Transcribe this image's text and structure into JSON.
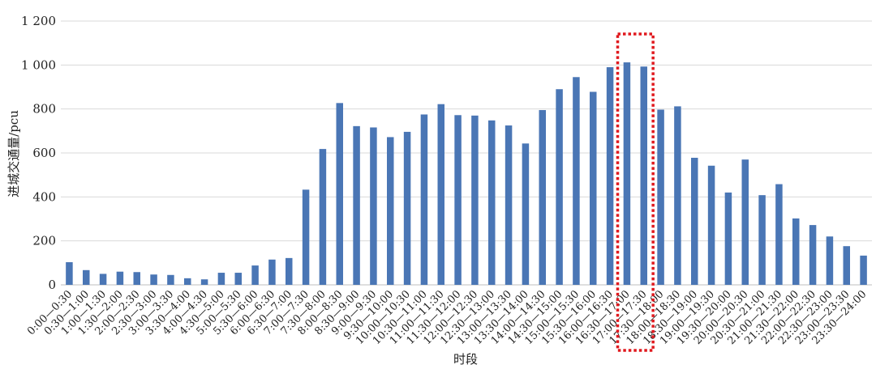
{
  "colors": {
    "bar": "#4a76b5",
    "grid": "#d9d9d9",
    "highlight": "#e0191e"
  },
  "chart_data": {
    "type": "bar",
    "title": "",
    "xlabel": "时段",
    "ylabel": "进城交通量/pcu",
    "ylim": [
      0,
      1200
    ],
    "yticks": [
      0,
      200,
      400,
      600,
      800,
      1000,
      1200
    ],
    "ytick_labels": [
      "0",
      "200",
      "400",
      "600",
      "800",
      "1 000",
      "1 200"
    ],
    "grid": true,
    "legend": "none",
    "categories": [
      "0:00—0:30",
      "0:30—1:00",
      "1:00—1:30",
      "1:30—2:00",
      "2:00—2:30",
      "2:30—3:00",
      "3:00—3:30",
      "3:30—4:00",
      "4:00—4:30",
      "4:30—5:00",
      "5:00—5:30",
      "5:30—6:00",
      "6:00—6:30",
      "6:30—7:00",
      "7:00—7:30",
      "7:30—8:00",
      "8:00—8:30",
      "8:30—9:00",
      "9:00—9:30",
      "9:30—10:00",
      "10:00—10:30",
      "10:30—11:00",
      "11:00—11:30",
      "11:30—12:00",
      "12:00—12:30",
      "12:30—13:00",
      "13:00—13:30",
      "13:30—14:00",
      "14:00—14:30",
      "14:30—15:00",
      "15:00—15:30",
      "15:30—16:00",
      "16:00—16:30",
      "16:30—17:00",
      "17:00—17:30",
      "17:30—18:00",
      "18:00—18:30",
      "18:30—19:00",
      "19:00—19:30",
      "19:30—20:00",
      "20:00—20:30",
      "20:30—21:00",
      "21:00—21:30",
      "21:30—22:00",
      "22:00—22:30",
      "22:30—23:00",
      "23:00—23:30",
      "23:30—24:00"
    ],
    "values": [
      103,
      67,
      50,
      60,
      58,
      47,
      45,
      30,
      25,
      55,
      55,
      88,
      115,
      122,
      433,
      618,
      827,
      722,
      716,
      672,
      696,
      775,
      822,
      772,
      770,
      748,
      725,
      643,
      795,
      890,
      945,
      878,
      990,
      1012,
      993,
      797,
      812,
      578,
      542,
      420,
      570,
      408,
      458,
      302,
      272,
      220,
      176,
      133
    ],
    "highlight": {
      "categories": [
        "16:30—17:00",
        "17:00—17:30"
      ],
      "style": "dotted-box"
    }
  }
}
